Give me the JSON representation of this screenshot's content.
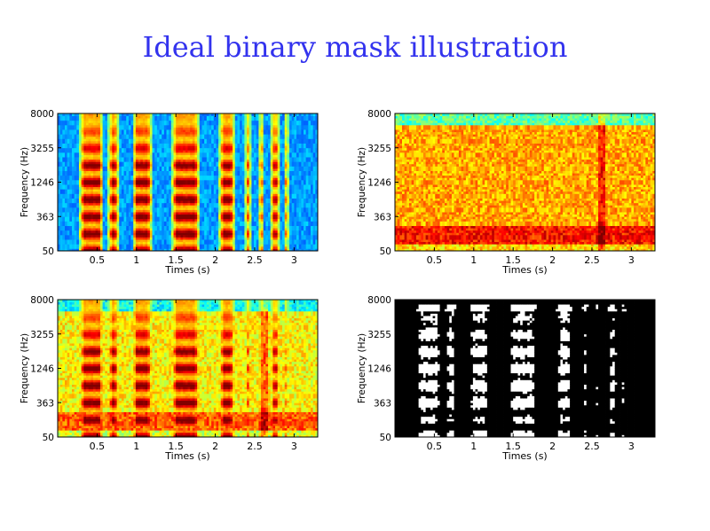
{
  "slide": {
    "title": "Ideal binary mask illustration"
  },
  "chart_data": [
    {
      "type": "heatmap",
      "variant": "clean-speech-spectrogram",
      "xlabel": "Times (s)",
      "ylabel": "Frequency (Hz)",
      "xticks": [
        0.5,
        1,
        1.5,
        2,
        2.5,
        3
      ],
      "xlim": [
        0,
        3.3
      ],
      "yticks": [
        "50",
        "363",
        "1246",
        "3255",
        "8000"
      ],
      "colormap": "jet"
    },
    {
      "type": "heatmap",
      "variant": "noise-spectrogram",
      "xlabel": "Times (s)",
      "ylabel": "Frequency (Hz)",
      "xticks": [
        0.5,
        1,
        1.5,
        2,
        2.5,
        3
      ],
      "xlim": [
        0,
        3.3
      ],
      "yticks": [
        "50",
        "363",
        "1246",
        "3255",
        "8000"
      ],
      "colormap": "jet"
    },
    {
      "type": "heatmap",
      "variant": "mixture-spectrogram",
      "xlabel": "Times (s)",
      "ylabel": "Frequency (Hz)",
      "xticks": [
        0.5,
        1,
        1.5,
        2,
        2.5,
        3
      ],
      "xlim": [
        0,
        3.3
      ],
      "yticks": [
        "50",
        "363",
        "1246",
        "3255",
        "8000"
      ],
      "colormap": "jet"
    },
    {
      "type": "heatmap",
      "variant": "ideal-binary-mask",
      "xlabel": "Times (s)",
      "ylabel": "Frequency (Hz)",
      "xticks": [
        0.5,
        1,
        1.5,
        2,
        2.5,
        3
      ],
      "xlim": [
        0,
        3.3
      ],
      "yticks": [
        "50",
        "363",
        "1246",
        "3255",
        "8000"
      ],
      "colormap": "binary",
      "colors": {
        "on": "#ffffff",
        "off": "#000000"
      }
    }
  ]
}
